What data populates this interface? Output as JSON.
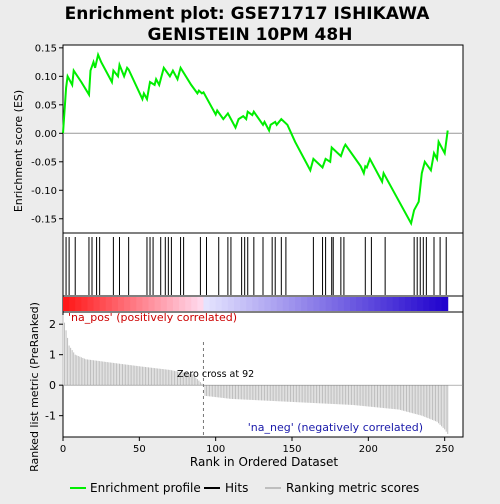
{
  "title_line1": "Enrichment plot: GSE71717 ISHIKAWA",
  "title_line2": "GENISTEIN 10PM 48H",
  "ylabel_top": "Enrichment score (ES)",
  "ylabel_bottom": "Ranked list metric (PreRanked)",
  "xlabel": "Rank in Ordered Dataset",
  "label_pos": "'na_pos' (positively correlated)",
  "label_neg": "'na_neg' (negatively correlated)",
  "zero_cross_text": "Zero cross at 92",
  "legend": [
    {
      "label": "Enrichment profile",
      "color": "#00ee00"
    },
    {
      "label": "Hits",
      "color": "#000000"
    },
    {
      "label": "Ranking metric scores",
      "color": "#bebebe"
    }
  ],
  "chart_data": {
    "type": "line",
    "xlim": [
      0,
      262
    ],
    "es_ylim": [
      -0.175,
      0.155
    ],
    "es_ticks": [
      -0.15,
      -0.1,
      -0.05,
      0.0,
      0.05,
      0.1,
      0.15
    ],
    "es_tick_labels": [
      "-0.15",
      "-0.10",
      "-0.05",
      "0.00",
      "0.05",
      "0.10",
      "0.15"
    ],
    "x_ticks": [
      0,
      50,
      100,
      150,
      200,
      250
    ],
    "metric_ylim": [
      -1.7,
      2.4
    ],
    "metric_ticks": [
      -1,
      0,
      1,
      2
    ],
    "zero_cross": 92,
    "n_genes": 252,
    "es_profile": [
      [
        0,
        0.0
      ],
      [
        2,
        0.08
      ],
      [
        3,
        0.1
      ],
      [
        6,
        0.085
      ],
      [
        7,
        0.11
      ],
      [
        12,
        0.09
      ],
      [
        17,
        0.068
      ],
      [
        18,
        0.11
      ],
      [
        20,
        0.125
      ],
      [
        21,
        0.115
      ],
      [
        23,
        0.138
      ],
      [
        25,
        0.125
      ],
      [
        32,
        0.09
      ],
      [
        33,
        0.11
      ],
      [
        36,
        0.1
      ],
      [
        37,
        0.12
      ],
      [
        40,
        0.1
      ],
      [
        42,
        0.115
      ],
      [
        43,
        0.112
      ],
      [
        52,
        0.06
      ],
      [
        53,
        0.07
      ],
      [
        55,
        0.06
      ],
      [
        57,
        0.09
      ],
      [
        60,
        0.085
      ],
      [
        61,
        0.095
      ],
      [
        63,
        0.085
      ],
      [
        66,
        0.115
      ],
      [
        70,
        0.1
      ],
      [
        72,
        0.11
      ],
      [
        75,
        0.095
      ],
      [
        77,
        0.115
      ],
      [
        84,
        0.085
      ],
      [
        88,
        0.07
      ],
      [
        89,
        0.075
      ],
      [
        91,
        0.07
      ],
      [
        92,
        0.072
      ],
      [
        100,
        0.033
      ],
      [
        101,
        0.04
      ],
      [
        105,
        0.025
      ],
      [
        108,
        0.035
      ],
      [
        113,
        0.01
      ],
      [
        115,
        0.025
      ],
      [
        118,
        0.03
      ],
      [
        120,
        0.025
      ],
      [
        121,
        0.038
      ],
      [
        124,
        0.032
      ],
      [
        125,
        0.038
      ],
      [
        131,
        0.015
      ],
      [
        132,
        0.02
      ],
      [
        135,
        0.005
      ],
      [
        136,
        0.015
      ],
      [
        139,
        0.02
      ],
      [
        140,
        0.015
      ],
      [
        143,
        0.025
      ],
      [
        147,
        0.015
      ],
      [
        152,
        -0.015
      ],
      [
        158,
        -0.045
      ],
      [
        162,
        -0.065
      ],
      [
        164,
        -0.045
      ],
      [
        170,
        -0.06
      ],
      [
        172,
        -0.045
      ],
      [
        175,
        -0.05
      ],
      [
        176,
        -0.025
      ],
      [
        182,
        -0.04
      ],
      [
        184,
        -0.025
      ],
      [
        185,
        -0.02
      ],
      [
        195,
        -0.058
      ],
      [
        197,
        -0.07
      ],
      [
        198,
        -0.058
      ],
      [
        199,
        -0.06
      ],
      [
        201,
        -0.045
      ],
      [
        209,
        -0.085
      ],
      [
        210,
        -0.07
      ],
      [
        228,
        -0.158
      ],
      [
        230,
        -0.135
      ],
      [
        233,
        -0.12
      ],
      [
        235,
        -0.07
      ],
      [
        237,
        -0.05
      ],
      [
        241,
        -0.065
      ],
      [
        243,
        -0.035
      ],
      [
        245,
        -0.045
      ],
      [
        246,
        -0.015
      ],
      [
        250,
        -0.035
      ],
      [
        252,
        0.005
      ]
    ],
    "hits": [
      2,
      4,
      8,
      17,
      19,
      22,
      24,
      33,
      37,
      43,
      55,
      57,
      59,
      64,
      67,
      69,
      71,
      77,
      79,
      90,
      94,
      102,
      108,
      110,
      117,
      119,
      121,
      125,
      131,
      137,
      139,
      143,
      146,
      164,
      170,
      172,
      176,
      177,
      182,
      184,
      198,
      202,
      211,
      230,
      232,
      234,
      236,
      238,
      243,
      247,
      251
    ],
    "metric_knots": [
      [
        0,
        2.3
      ],
      [
        2,
        1.8
      ],
      [
        4,
        1.3
      ],
      [
        8,
        1.0
      ],
      [
        15,
        0.85
      ],
      [
        30,
        0.75
      ],
      [
        50,
        0.62
      ],
      [
        70,
        0.5
      ],
      [
        85,
        0.35
      ],
      [
        92,
        0.0
      ],
      [
        93,
        -0.35
      ],
      [
        110,
        -0.45
      ],
      [
        150,
        -0.55
      ],
      [
        190,
        -0.65
      ],
      [
        220,
        -0.8
      ],
      [
        235,
        -1.0
      ],
      [
        245,
        -1.2
      ],
      [
        250,
        -1.45
      ],
      [
        252,
        -1.6
      ]
    ]
  }
}
